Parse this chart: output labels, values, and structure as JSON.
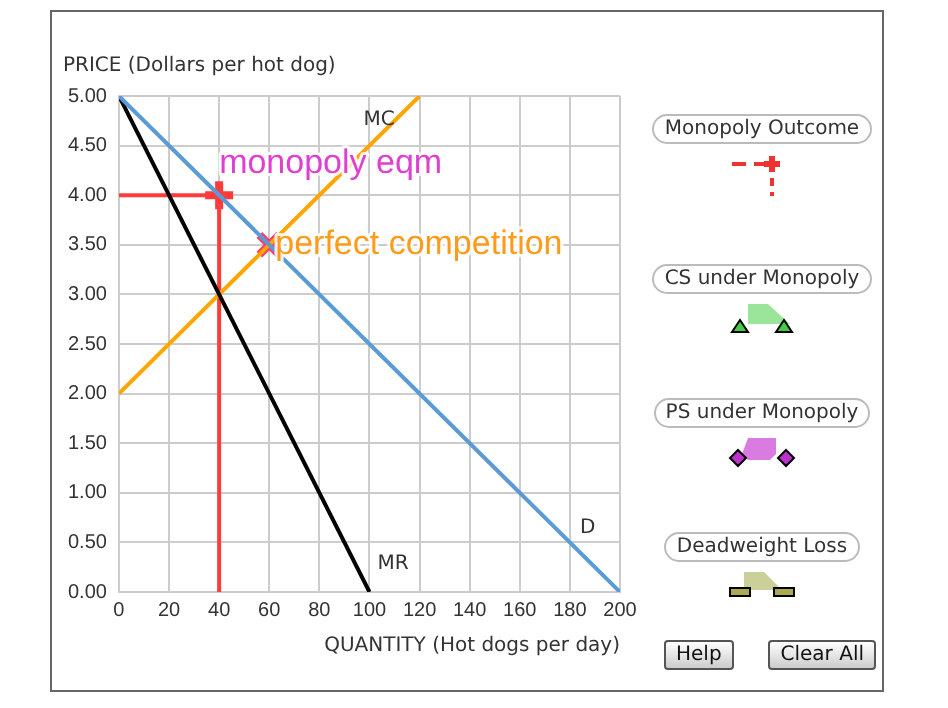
{
  "chart_data": {
    "type": "line",
    "xlabel": "QUANTITY (Hot dogs per day)",
    "ylabel": "PRICE (Dollars per hot dog)",
    "xlim": [
      0,
      200
    ],
    "xticks": [
      0,
      20,
      40,
      60,
      80,
      100,
      120,
      140,
      160,
      180,
      200
    ],
    "ylim": [
      0,
      5
    ],
    "yticks": [
      {
        "value": 0,
        "label": "0.00"
      },
      {
        "value": 0.5,
        "label": "0.50"
      },
      {
        "value": 1,
        "label": "1.00"
      },
      {
        "value": 1.5,
        "label": "1.50"
      },
      {
        "value": 2,
        "label": "2.00"
      },
      {
        "value": 2.5,
        "label": "2.50"
      },
      {
        "value": 3,
        "label": "3.00"
      },
      {
        "value": 3.5,
        "label": "3.50"
      },
      {
        "value": 4,
        "label": "4.00"
      },
      {
        "value": 4.5,
        "label": "4.50"
      },
      {
        "value": 5,
        "label": "5.00"
      }
    ],
    "grid": true,
    "legend": false,
    "marker": "none",
    "line_style": "solid",
    "series": [
      {
        "name": "D",
        "color": "#5b9bd5",
        "x": [
          0,
          200
        ],
        "values": [
          5,
          0
        ]
      },
      {
        "name": "MR",
        "color": "#000000",
        "x": [
          0,
          100
        ],
        "values": [
          5,
          0
        ]
      },
      {
        "name": "MC",
        "color": "#ffa500",
        "x": [
          0,
          120
        ],
        "values": [
          2,
          5
        ]
      },
      {
        "color": "#ff3b3b",
        "x": [
          0,
          40
        ],
        "values": [
          4,
          4
        ]
      },
      {
        "color": "#ff3b3b",
        "x": [
          40,
          40
        ],
        "values": [
          4,
          0
        ]
      },
      {
        "type": "scatter",
        "marker": "cross",
        "color": "#ff3b3b",
        "x": [
          40
        ],
        "values": [
          4
        ]
      },
      {
        "type": "scatter",
        "marker": "cross",
        "color": "#ff3b6b",
        "x": [
          60
        ],
        "values": [
          3.5
        ]
      }
    ],
    "annotations": [
      {
        "text": "monopoly eqm",
        "x": 40,
        "y": 4
      },
      {
        "text": "perfect competition",
        "x": 60,
        "y": 3.5
      },
      "Monopoly Outcome",
      "CS under Monopoly",
      "PS under Monopoly",
      "Deadweight Loss",
      "Help",
      "Clear All"
    ]
  }
}
